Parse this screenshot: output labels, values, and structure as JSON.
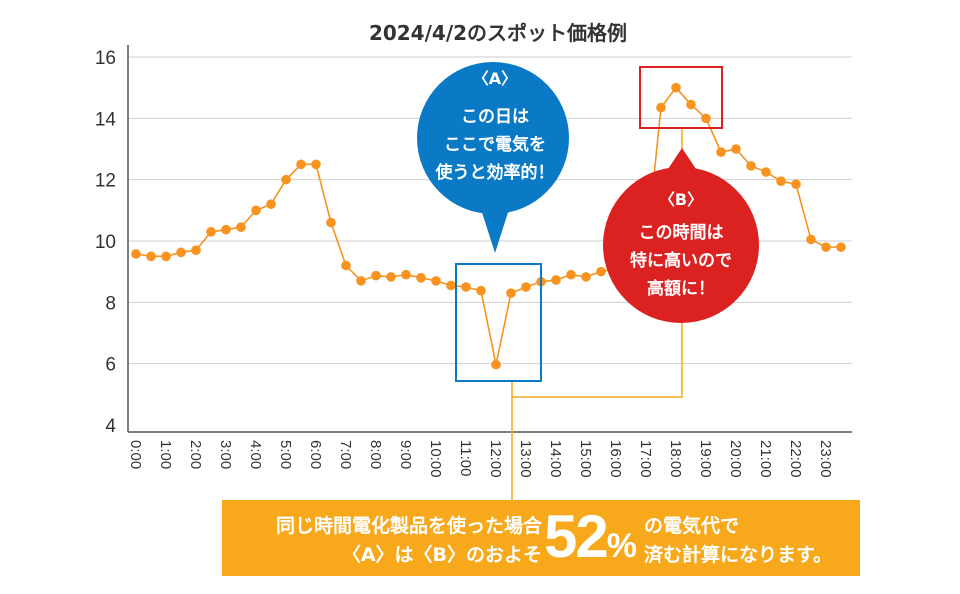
{
  "chart_data": {
    "type": "line",
    "title": "2024/4/2のスポット価格例",
    "xlabel": "",
    "ylabel": "",
    "ylim": [
      4,
      16
    ],
    "yticks": [
      4,
      6,
      8,
      10,
      12,
      14,
      16
    ],
    "grid": true,
    "x": [
      "0:00",
      "0:30",
      "1:00",
      "1:30",
      "2:00",
      "2:30",
      "3:00",
      "3:30",
      "4:00",
      "4:30",
      "5:00",
      "5:30",
      "6:00",
      "6:30",
      "7:00",
      "7:30",
      "8:00",
      "8:30",
      "9:00",
      "9:30",
      "10:00",
      "10:30",
      "11:00",
      "11:30",
      "12:00",
      "12:30",
      "13:00",
      "13:30",
      "14:00",
      "14:30",
      "15:00",
      "15:30",
      "16:00",
      "16:30",
      "17:00",
      "17:30",
      "18:00",
      "18:30",
      "19:00",
      "19:30",
      "20:00",
      "20:30",
      "21:00",
      "21:30",
      "22:00",
      "22:30",
      "23:00",
      "23:30"
    ],
    "xtick_labels": [
      "0:00",
      "1:00",
      "2:00",
      "3:00",
      "4:00",
      "5:00",
      "6:00",
      "7:00",
      "8:00",
      "9:00",
      "10:00",
      "11:00",
      "12:00",
      "13:00",
      "14:00",
      "15:00",
      "16:00",
      "17:00",
      "18:00",
      "19:00",
      "20:00",
      "21:00",
      "22:00",
      "23:00"
    ],
    "values": [
      9.58,
      9.5,
      9.5,
      9.63,
      9.7,
      10.3,
      10.37,
      10.45,
      11.0,
      11.2,
      12.0,
      12.5,
      12.5,
      10.6,
      9.2,
      8.7,
      8.87,
      8.83,
      8.9,
      8.8,
      8.7,
      8.55,
      8.5,
      8.38,
      5.97,
      8.3,
      8.5,
      8.67,
      8.73,
      8.9,
      8.83,
      9.0,
      9.1,
      9.3,
      9.6,
      14.35,
      15.0,
      14.45,
      14.0,
      12.9,
      13.0,
      12.45,
      12.25,
      11.95,
      11.85,
      10.05,
      9.8,
      9.8
    ],
    "line_color": "#f7931e"
  },
  "callouts": {
    "a": {
      "tag": "〈A〉",
      "lines": [
        "この日は",
        "ここで電気を",
        "使うと効率的！"
      ],
      "color": "#0a7ac6"
    },
    "b": {
      "tag": "〈B〉",
      "lines": [
        "この時間は",
        "特に高いので",
        "高額に！"
      ],
      "color": "#dc2121"
    }
  },
  "note": {
    "line1": "同じ時間電化製品を使った場合",
    "line2": "〈A〉は〈B〉のおよそ",
    "big": "52",
    "pct": "%",
    "line3": "の電気代で",
    "line4": "済む計算になります。",
    "color": "#f7a81b"
  }
}
